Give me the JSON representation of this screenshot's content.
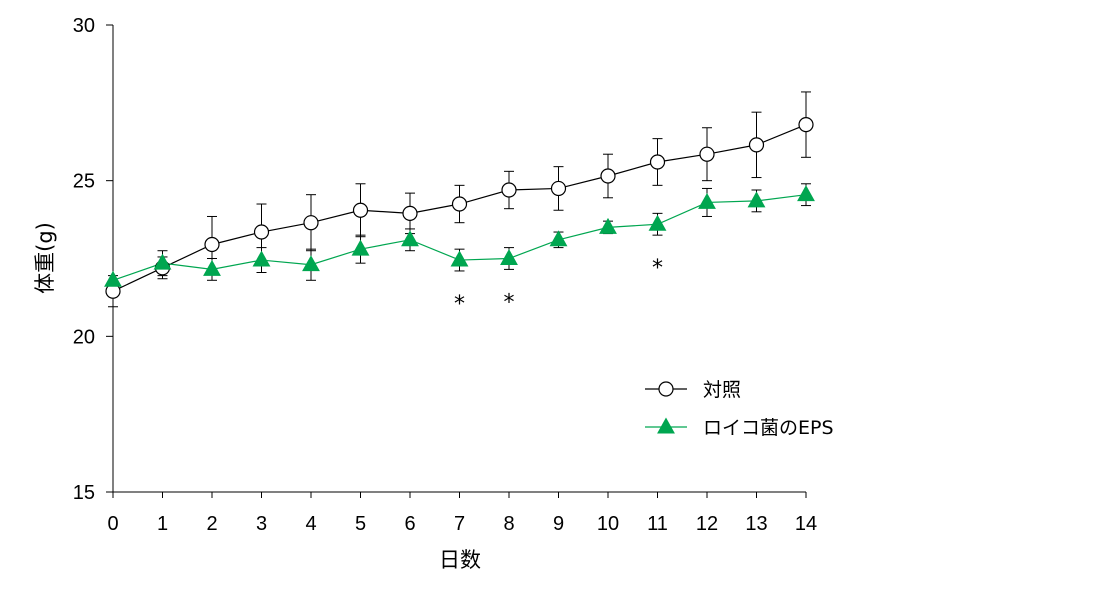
{
  "chart_data": {
    "type": "line",
    "xlabel": "日数",
    "ylabel": "体重(g)",
    "x": [
      0,
      1,
      2,
      3,
      4,
      5,
      6,
      7,
      8,
      9,
      10,
      11,
      12,
      13,
      14
    ],
    "xlim": [
      0,
      14
    ],
    "ylim": [
      15,
      30
    ],
    "yticks": [
      15,
      20,
      25,
      30
    ],
    "grid": false,
    "legend_position": "bottom-right",
    "series": [
      {
        "name": "対照",
        "marker": "open-circle",
        "color": "#000000",
        "values": [
          21.45,
          22.2,
          22.95,
          23.35,
          23.65,
          24.05,
          23.95,
          24.25,
          24.7,
          24.75,
          25.15,
          25.6,
          25.85,
          26.15,
          26.8
        ],
        "error": [
          0.5,
          0.35,
          0.9,
          0.9,
          0.9,
          0.85,
          0.65,
          0.6,
          0.6,
          0.7,
          0.7,
          0.75,
          0.85,
          1.05,
          1.05
        ]
      },
      {
        "name": "ロイコ菌のEPS",
        "marker": "filled-triangle",
        "color": "#00a650",
        "values": [
          21.8,
          22.35,
          22.15,
          22.45,
          22.3,
          22.8,
          23.1,
          22.45,
          22.5,
          23.1,
          23.5,
          23.6,
          24.3,
          24.35,
          24.55
        ],
        "error": [
          0.0,
          0.4,
          0.35,
          0.4,
          0.5,
          0.45,
          0.35,
          0.35,
          0.35,
          0.25,
          0.2,
          0.35,
          0.45,
          0.35,
          0.35
        ]
      }
    ],
    "annotations": [
      {
        "x": 7,
        "text": "*"
      },
      {
        "x": 8,
        "text": "*"
      },
      {
        "x": 11,
        "text": "*"
      }
    ]
  }
}
